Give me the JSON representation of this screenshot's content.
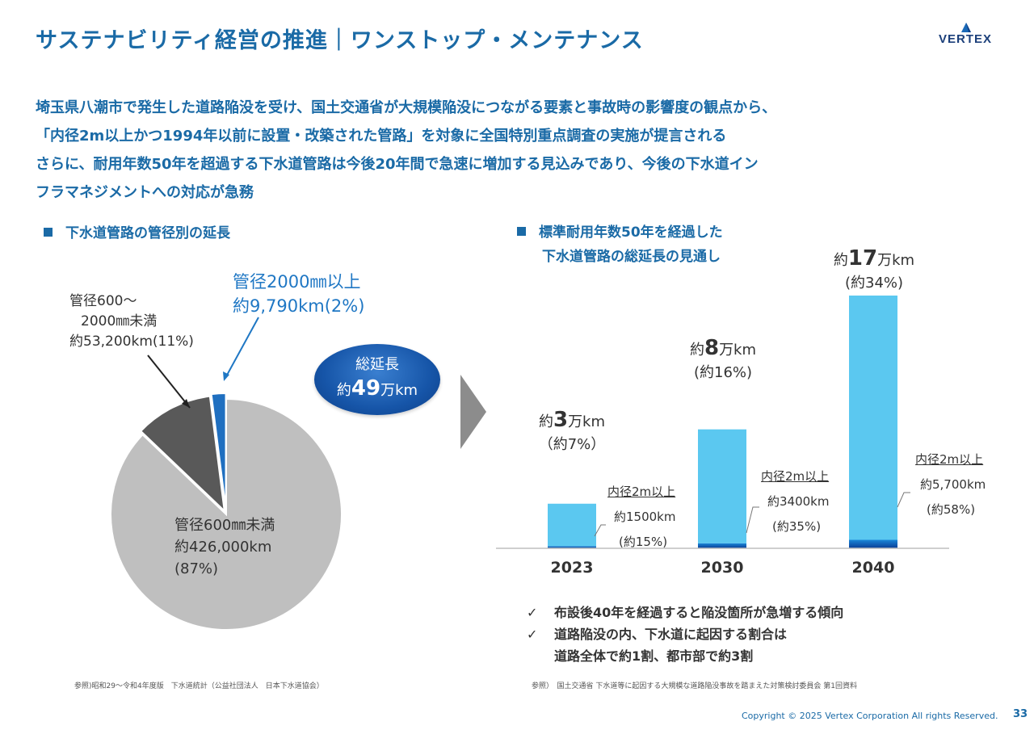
{
  "header": {
    "title": "サステナビリティ経営の推進｜ワンストップ・メンテナンス",
    "logo": "VERTEX"
  },
  "lead": {
    "lines": [
      "埼玉県八潮市で発生した道路陥没を受け、国土交通省が大規模陥没につながる要素と事故時の影響度の観点から、",
      "「内径2m以上かつ1994年以前に設置・改築された管路」を対象に全国特別重点調査の実施が提言される",
      "さらに、耐用年数50年を超過する下水道管路は今後20年間で急速に増加する見込みであり、今後の下水道イン",
      "フラマネジメントへの対応が急務"
    ]
  },
  "left": {
    "heading": "下水道管路の管径別の延長",
    "label_mid": [
      "管径600～",
      "2000㎜未満",
      "約53,200km(11%)"
    ],
    "label_big": [
      "管径2000㎜以上",
      "約9,790km(2%)"
    ],
    "label_main": [
      "管径600㎜未満",
      "約426,000km",
      "(87%)"
    ],
    "total": {
      "line1": "総延長",
      "prefix": "約",
      "num": "49",
      "suffix": "万km"
    },
    "source": "参照)昭和29～令和4年度版　下水道統計（公益社団法人　日本下水道協会）"
  },
  "right": {
    "heading": [
      "標準耐用年数50年を経過した",
      "下水道管路の総延長の見通し"
    ],
    "bars": [
      {
        "prefix": "約",
        "num": "3",
        "suffix": "万km",
        "pct": "（約7%）",
        "sub_title": "内径2m以上",
        "sub_val": "約1500km",
        "sub_pct": "(約15%)"
      },
      {
        "prefix": "約",
        "num": "8",
        "suffix": "万km",
        "pct": "(約16%)",
        "sub_title": "内径2m以上",
        "sub_val": "約3400km",
        "sub_pct": "(約35%)"
      },
      {
        "prefix": "約",
        "num": "17",
        "suffix": "万km",
        "pct": "(約34%)",
        "sub_title": "内径2m以上",
        "sub_val": "約5,700km",
        "sub_pct": "(約58%)"
      }
    ],
    "checks": [
      "布設後40年を経過すると陥没箇所が急増する傾向",
      "道路陥没の内、下水道に起因する割合は",
      "道路全体で約1割、都市部で約3割"
    ],
    "source": "参照）　国土交通省 下水道等に起因する大規模な道路陥没事故を踏まえた対策検討委員会 第1回資料"
  },
  "footer": {
    "copyright": "Copyright © 2025 Vertex Corporation All rights Reserved.",
    "page": "33"
  },
  "chart_data": [
    {
      "type": "pie",
      "categories": [
        "管径600㎜未満",
        "管径600～2000㎜未満",
        "管径2000㎜以上"
      ],
      "values": [
        426000,
        53200,
        9790
      ],
      "percent": [
        87,
        11,
        2
      ],
      "colors": [
        "#bfbfbf",
        "#595959",
        "#1f6fc0"
      ],
      "unit": "km"
    },
    {
      "type": "bar",
      "stacked": true,
      "categories": [
        "2023",
        "2030",
        "2040"
      ],
      "series": [
        {
          "name": "内径2m以上",
          "values": [
            1500,
            3400,
            5700
          ],
          "color": "#0a4ea8"
        },
        {
          "values": [
            28500,
            76600,
            164300
          ],
          "color": "#5bc8f0"
        }
      ],
      "totals": [
        30000,
        80000,
        170000
      ],
      "unit": "km",
      "ylim": [
        0,
        170000
      ]
    }
  ]
}
